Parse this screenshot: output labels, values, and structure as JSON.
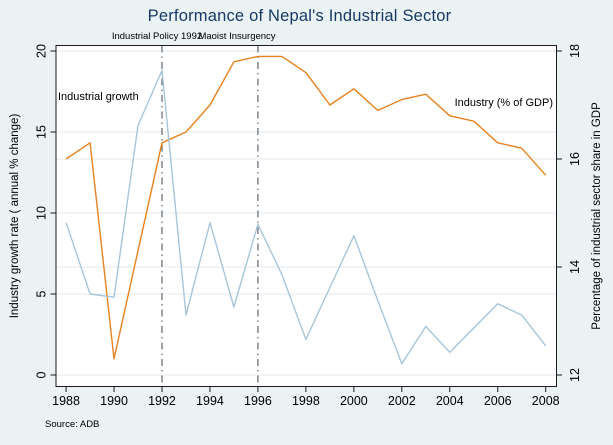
{
  "title": "Performance of Nepal's Industrial Sector",
  "source_note": "Source: ADB",
  "colors": {
    "growth_line": "#a7c6da",
    "gdp_line": "#e8821e",
    "title_text": "#173966",
    "reference_line": "#5c6670",
    "grid_line": "#e4ebf2",
    "axis_line": "#1a1a1a",
    "background": "#eaf2f3",
    "plot_background": "#ffffff"
  },
  "chart_data": {
    "type": "line",
    "title": "Performance of Nepal's Industrial Sector",
    "x": [
      1988,
      1989,
      1990,
      1991,
      1992,
      1993,
      1994,
      1995,
      1996,
      1997,
      1998,
      1999,
      2000,
      2001,
      2002,
      2003,
      2004,
      2005,
      2006,
      2007,
      2008
    ],
    "series": [
      {
        "name": "Industrial growth",
        "axis": "left",
        "color_key": "growth_line",
        "values": [
          9.4,
          5.0,
          4.8,
          15.4,
          18.8,
          3.7,
          9.4,
          4.2,
          9.3,
          6.2,
          2.2,
          5.4,
          8.6,
          4.6,
          0.7,
          3.0,
          1.4,
          2.9,
          4.4,
          3.7,
          1.8
        ]
      },
      {
        "name": "Industry (% of GDP)",
        "axis": "right",
        "color_key": "gdp_line",
        "values": [
          16.0,
          16.3,
          12.3,
          14.3,
          16.3,
          16.5,
          17.0,
          17.8,
          17.9,
          17.9,
          17.6,
          17.0,
          17.3,
          16.9,
          17.1,
          17.2,
          16.8,
          16.7,
          16.3,
          16.2,
          15.7
        ]
      }
    ],
    "left_axis": {
      "label": "Industry growth rate ( annual % change)",
      "range": [
        0,
        20
      ],
      "ticks": [
        0,
        5,
        10,
        15,
        20
      ]
    },
    "right_axis": {
      "label": "Percentage of industrial sector share in GDP",
      "range": [
        12,
        18
      ],
      "ticks": [
        12,
        14,
        16,
        18
      ]
    },
    "x_axis": {
      "ticks": [
        1988,
        1990,
        1992,
        1994,
        1996,
        1998,
        2000,
        2002,
        2004,
        2006,
        2008
      ]
    },
    "reference_lines": [
      {
        "x": 1992,
        "label": "Industrial Policy 1992"
      },
      {
        "x": 1996,
        "label": "Maoist Insurgency"
      }
    ],
    "grid": true,
    "legend": "in-plot text labels"
  }
}
